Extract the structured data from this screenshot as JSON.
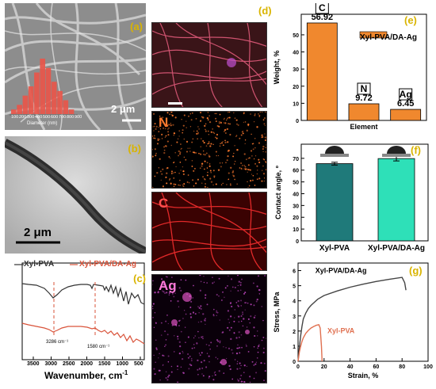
{
  "panels": {
    "a": {
      "tag": "(a)",
      "scale_bar": "2 μm",
      "hist_xlabel": "Diameter (nm)",
      "hist_ticks": [
        "100",
        "200",
        "300",
        "400",
        "500",
        "600",
        "700",
        "800",
        "900"
      ],
      "hist_values": [
        1,
        2,
        4,
        6,
        9,
        12,
        10,
        7,
        5,
        3,
        1
      ]
    },
    "b": {
      "tag": "(b)",
      "scale_bar": "2 μm"
    },
    "c": {
      "tag": "(c)",
      "legend": [
        "Xyl-PVA",
        "Xyl-PVA/DA-Ag"
      ],
      "xlabel": "Wavenumber, cm",
      "xlabel_sup": "-1",
      "xticks": [
        "3500",
        "3000",
        "2500",
        "2000",
        "1500",
        "1000",
        "500"
      ],
      "annotations": [
        "3286 cm⁻¹",
        "1580 cm⁻¹"
      ],
      "colors": {
        "xyl_pva": "#333333",
        "xyl_pva_da_ag": "#d9533a",
        "marker": "#d9533a"
      }
    },
    "d": {
      "tag": "(d)",
      "maps": [
        {
          "element": "N",
          "color": "#ff7a2e"
        },
        {
          "element": "C",
          "color": "#ff4040"
        },
        {
          "element": "Ag",
          "color": "#ff7ad9"
        }
      ]
    }
  },
  "chart_data": [
    {
      "type": "bar",
      "panel_tag": "(e)",
      "categories": [
        "C",
        "N",
        "Ag"
      ],
      "values": [
        56.92,
        9.72,
        6.45
      ],
      "value_labels": [
        "56.92",
        "9.72",
        "6.45"
      ],
      "legend": "Xyl-PVA/DA-Ag",
      "xlabel": "Element",
      "ylabel": "Weight, %",
      "yticks": [
        "0",
        "10",
        "20",
        "30",
        "40",
        "50"
      ],
      "ylim": [
        0,
        62
      ],
      "color": "#f0882e"
    },
    {
      "type": "bar",
      "panel_tag": "(f)",
      "categories": [
        "Xyl-PVA",
        "Xyl-PVA/DA-Ag"
      ],
      "values": [
        65.5,
        69.8
      ],
      "errors": [
        1.2,
        2.0
      ],
      "ylabel": "Contact angle, º",
      "yticks": [
        "0",
        "10",
        "20",
        "30",
        "40",
        "50",
        "60",
        "70"
      ],
      "ylim": [
        0,
        82
      ],
      "colors": [
        "#1f7a7a",
        "#2ee0b8"
      ]
    },
    {
      "type": "line",
      "panel_tag": "(g)",
      "xlabel": "Strain, %",
      "ylabel": "Stress, MPa",
      "xticks": [
        "0",
        "20",
        "40",
        "60",
        "80",
        "100"
      ],
      "yticks": [
        "0",
        "1",
        "2",
        "3",
        "4",
        "5",
        "6"
      ],
      "xlim": [
        0,
        100
      ],
      "ylim": [
        0,
        6.5
      ],
      "series": [
        {
          "name": "Xyl-PVA/DA-Ag",
          "color": "#444444",
          "x": [
            0,
            1,
            2,
            3,
            4,
            6,
            8,
            10,
            15,
            20,
            30,
            40,
            50,
            60,
            70,
            80,
            82,
            83
          ],
          "y": [
            0,
            0.9,
            1.7,
            2.3,
            2.8,
            3.2,
            3.5,
            3.7,
            4.1,
            4.35,
            4.65,
            4.9,
            5.1,
            5.28,
            5.42,
            5.55,
            5.2,
            4.7
          ]
        },
        {
          "name": "Xyl-PVA",
          "color": "#e07050",
          "x": [
            0,
            1,
            2,
            3,
            4,
            6,
            8,
            10,
            12,
            14,
            16,
            17,
            18,
            18.5
          ],
          "y": [
            0,
            0.6,
            1.0,
            1.3,
            1.55,
            1.85,
            2.05,
            2.2,
            2.3,
            2.38,
            2.42,
            2.2,
            1.0,
            0
          ]
        }
      ]
    }
  ]
}
